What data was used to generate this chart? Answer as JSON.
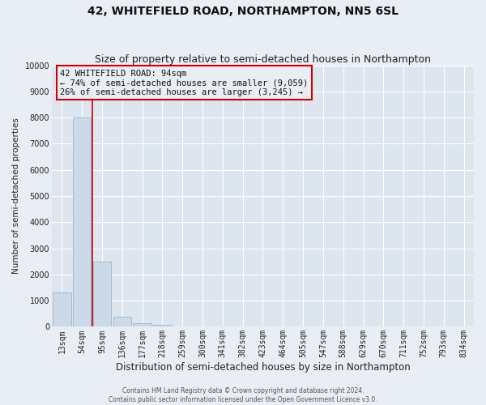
{
  "title": "42, WHITEFIELD ROAD, NORTHAMPTON, NN5 6SL",
  "subtitle": "Size of property relative to semi-detached houses in Northampton",
  "bar_labels": [
    "13sqm",
    "54sqm",
    "95sqm",
    "136sqm",
    "177sqm",
    "218sqm",
    "259sqm",
    "300sqm",
    "341sqm",
    "382sqm",
    "423sqm",
    "464sqm",
    "505sqm",
    "547sqm",
    "588sqm",
    "629sqm",
    "670sqm",
    "711sqm",
    "752sqm",
    "793sqm",
    "834sqm"
  ],
  "bar_values": [
    1300,
    8000,
    2500,
    400,
    150,
    60,
    0,
    0,
    0,
    0,
    0,
    0,
    0,
    0,
    0,
    0,
    0,
    0,
    0,
    0,
    0
  ],
  "bar_color": "#ccd9e8",
  "bar_edge_color": "#9ab4cc",
  "property_line_index": 2,
  "property_line_color": "#cc0000",
  "xlabel": "Distribution of semi-detached houses by size in Northampton",
  "ylabel": "Number of semi-detached properties",
  "ylim": [
    0,
    10000
  ],
  "yticks": [
    0,
    1000,
    2000,
    3000,
    4000,
    5000,
    6000,
    7000,
    8000,
    9000,
    10000
  ],
  "annotation_title": "42 WHITEFIELD ROAD: 94sqm",
  "annotation_line1": "← 74% of semi-detached houses are smaller (9,059)",
  "annotation_line2": "26% of semi-detached houses are larger (3,245) →",
  "annotation_box_color": "#cc0000",
  "footer_line1": "Contains HM Land Registry data © Crown copyright and database right 2024.",
  "footer_line2": "Contains public sector information licensed under the Open Government Licence v3.0.",
  "background_color": "#e8eef4",
  "plot_bg_color": "#dde6ef",
  "grid_color": "#ffffff",
  "title_fontsize": 10,
  "subtitle_fontsize": 9,
  "xlabel_fontsize": 8.5,
  "ylabel_fontsize": 7.5,
  "tick_fontsize": 7,
  "annotation_fontsize": 7.5,
  "footer_fontsize": 5.5
}
